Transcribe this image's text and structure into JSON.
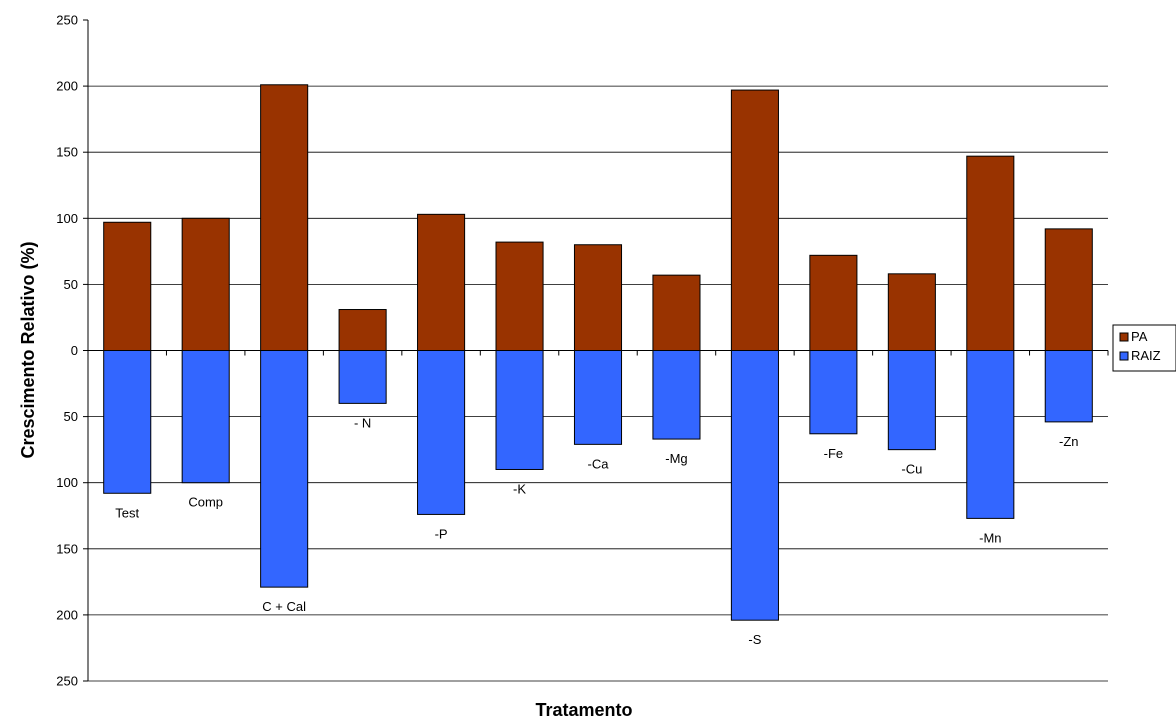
{
  "chart_data": {
    "type": "bar",
    "title": "",
    "xlabel": "Tratamento",
    "ylabel": "Crescimento Relativo (%)",
    "ylim": [
      -250,
      250
    ],
    "yticks": [
      250,
      200,
      150,
      100,
      50,
      0,
      50,
      100,
      150,
      200,
      250
    ],
    "grid": true,
    "legend_position": "right",
    "categories": [
      "Test",
      "Comp",
      "C + Cal",
      "- N",
      "-P",
      "-K",
      "-Ca",
      "-Mg",
      "-S",
      "-Fe",
      "-Cu",
      "-Mn",
      "-Zn"
    ],
    "series": [
      {
        "name": "PA",
        "color": "#993300",
        "values": [
          97,
          100,
          201,
          31,
          103,
          82,
          80,
          57,
          197,
          72,
          58,
          147,
          92
        ]
      },
      {
        "name": "RAIZ",
        "color": "#3366FF",
        "values": [
          -108,
          -100,
          -179,
          -40,
          -124,
          -90,
          -71,
          -67,
          -204,
          -63,
          -75,
          -127,
          -54
        ]
      }
    ]
  }
}
